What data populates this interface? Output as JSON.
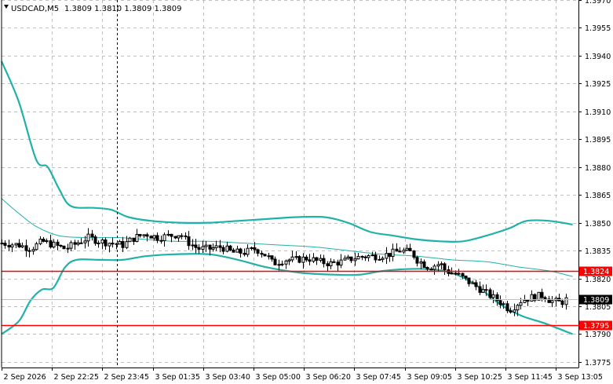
{
  "header": {
    "symbol_label": "USDCAD,M5",
    "ohlc_text": "1.3809 1.3810 1.3809 1.3809",
    "menu_icon": "triangle-down-icon"
  },
  "colors": {
    "background": "#ffffff",
    "grid": "#c0c0c0",
    "candle": "#000000",
    "bollinger": "#20b2aa",
    "moving_average": "#20b2aa",
    "level_line": "#ff0000",
    "level_badge": "#ff0000",
    "price_line": "#c0c0c0",
    "price_badge": "#000000",
    "crosshair": "#000000"
  },
  "chart_data": {
    "type": "candlestick",
    "symbol": "USDCAD",
    "timeframe": "M5",
    "ylim": [
      1.3772,
      1.397
    ],
    "x_axis_labels": [
      "2 Sep 2026",
      "2 Sep 22:25",
      "2 Sep 23:45",
      "3 Sep 01:35",
      "3 Sep 03:40",
      "3 Sep 05:00",
      "3 Sep 06:20",
      "3 Sep 07:45",
      "3 Sep 09:05",
      "3 Sep 10:25",
      "3 Sep 11:45",
      "3 Sep 13:05"
    ],
    "y_axis_labels": [
      "1.3970",
      "1.3955",
      "1.3940",
      "1.3925",
      "1.3910",
      "1.3895",
      "1.3880",
      "1.3865",
      "1.3850",
      "1.3835",
      "1.3820",
      "1.3805",
      "1.3790",
      "1.3775"
    ],
    "y_axis_values": [
      1.397,
      1.3955,
      1.394,
      1.3925,
      1.391,
      1.3895,
      1.388,
      1.3865,
      1.385,
      1.3835,
      1.382,
      1.3805,
      1.379,
      1.3775
    ],
    "levels": [
      {
        "price": 1.3824,
        "label": "1.3824"
      },
      {
        "price": 1.3795,
        "label": "1.3795"
      }
    ],
    "current_price": {
      "price": 1.3809,
      "label": "1.3809"
    },
    "x_range": [
      0,
      100
    ],
    "crosshair_x": 20,
    "upper_band": [
      [
        0,
        1.3937
      ],
      [
        3,
        1.3915
      ],
      [
        6,
        1.3884
      ],
      [
        8,
        1.388
      ],
      [
        10,
        1.3868
      ],
      [
        12,
        1.3859
      ],
      [
        16,
        1.3858
      ],
      [
        19,
        1.3857
      ],
      [
        22,
        1.3853
      ],
      [
        26,
        1.3851
      ],
      [
        31,
        1.385
      ],
      [
        36,
        1.385
      ],
      [
        41,
        1.3851
      ],
      [
        46,
        1.3852
      ],
      [
        51,
        1.3853
      ],
      [
        56,
        1.3853
      ],
      [
        60,
        1.385
      ],
      [
        64,
        1.3845
      ],
      [
        68,
        1.3843
      ],
      [
        72,
        1.3841
      ],
      [
        76,
        1.384
      ],
      [
        80,
        1.384
      ],
      [
        84,
        1.3843
      ],
      [
        88,
        1.3847
      ],
      [
        91,
        1.3851
      ],
      [
        95,
        1.3851
      ],
      [
        99,
        1.3849
      ]
    ],
    "lower_band": [
      [
        0,
        1.379
      ],
      [
        3,
        1.3797
      ],
      [
        5,
        1.3808
      ],
      [
        7,
        1.3814
      ],
      [
        9,
        1.3815
      ],
      [
        11,
        1.3826
      ],
      [
        13,
        1.383
      ],
      [
        17,
        1.383
      ],
      [
        21,
        1.383
      ],
      [
        25,
        1.3832
      ],
      [
        30,
        1.3833
      ],
      [
        36,
        1.3833
      ],
      [
        41,
        1.383
      ],
      [
        46,
        1.3826
      ],
      [
        52,
        1.3823
      ],
      [
        58,
        1.3822
      ],
      [
        62,
        1.3822
      ],
      [
        66,
        1.3824
      ],
      [
        70,
        1.3825
      ],
      [
        74,
        1.3825
      ],
      [
        78,
        1.3823
      ],
      [
        82,
        1.3817
      ],
      [
        86,
        1.3807
      ],
      [
        90,
        1.38
      ],
      [
        94,
        1.3796
      ],
      [
        99,
        1.379
      ]
    ],
    "middle_band": [
      [
        0,
        1.3863
      ],
      [
        3,
        1.3855
      ],
      [
        6,
        1.3848
      ],
      [
        10,
        1.3843
      ],
      [
        15,
        1.3842
      ],
      [
        20,
        1.3842
      ],
      [
        25,
        1.3841
      ],
      [
        30,
        1.384
      ],
      [
        36,
        1.384
      ],
      [
        42,
        1.3839
      ],
      [
        48,
        1.3838
      ],
      [
        54,
        1.3837
      ],
      [
        60,
        1.3835
      ],
      [
        66,
        1.3833
      ],
      [
        72,
        1.3832
      ],
      [
        78,
        1.383
      ],
      [
        84,
        1.3829
      ],
      [
        90,
        1.3826
      ],
      [
        95,
        1.3824
      ],
      [
        99,
        1.3821
      ]
    ],
    "close_path": [
      [
        0,
        1.3839
      ],
      [
        3,
        1.3838
      ],
      [
        5,
        1.3836
      ],
      [
        7,
        1.384
      ],
      [
        9,
        1.3838
      ],
      [
        11,
        1.3836
      ],
      [
        13,
        1.3839
      ],
      [
        15,
        1.3842
      ],
      [
        17,
        1.384
      ],
      [
        19,
        1.3839
      ],
      [
        21,
        1.3838
      ],
      [
        23,
        1.3842
      ],
      [
        25,
        1.3844
      ],
      [
        27,
        1.3842
      ],
      [
        29,
        1.3843
      ],
      [
        31,
        1.3844
      ],
      [
        32,
        1.384
      ],
      [
        34,
        1.3836
      ],
      [
        36,
        1.3836
      ],
      [
        38,
        1.3837
      ],
      [
        40,
        1.3834
      ],
      [
        42,
        1.3834
      ],
      [
        44,
        1.3836
      ],
      [
        46,
        1.3832
      ],
      [
        47,
        1.3828
      ],
      [
        49,
        1.383
      ],
      [
        51,
        1.383
      ],
      [
        53,
        1.3831
      ],
      [
        55,
        1.3829
      ],
      [
        57,
        1.3828
      ],
      [
        59,
        1.3829
      ],
      [
        61,
        1.3831
      ],
      [
        63,
        1.3832
      ],
      [
        65,
        1.3832
      ],
      [
        67,
        1.3833
      ],
      [
        69,
        1.3835
      ],
      [
        71,
        1.3834
      ],
      [
        72,
        1.383
      ],
      [
        74,
        1.3826
      ],
      [
        76,
        1.3828
      ],
      [
        77,
        1.3824
      ],
      [
        79,
        1.3822
      ],
      [
        81,
        1.3818
      ],
      [
        83,
        1.3814
      ],
      [
        85,
        1.381
      ],
      [
        87,
        1.3806
      ],
      [
        88,
        1.3803
      ],
      [
        90,
        1.3808
      ],
      [
        92,
        1.381
      ],
      [
        94,
        1.3811
      ],
      [
        95,
        1.3808
      ],
      [
        97,
        1.3807
      ],
      [
        98,
        1.3809
      ]
    ]
  }
}
